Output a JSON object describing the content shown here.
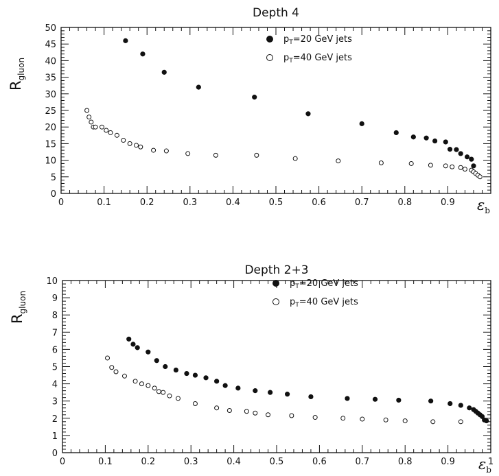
{
  "chart_data": [
    {
      "type": "scatter",
      "title": "Depth 4",
      "ylabel": "R",
      "ylabel_sub": "gluon",
      "xlabel": "ε",
      "xlabel_sub": "b",
      "xlim": [
        0,
        1
      ],
      "ylim": [
        0,
        50
      ],
      "x_ticks": [
        0,
        0.1,
        0.2,
        0.3,
        0.4,
        0.5,
        0.6,
        0.7,
        0.8,
        0.9
      ],
      "x_tick_labels": [
        "0",
        "0.1",
        "0.2",
        "0.3",
        "0.4",
        "0.5",
        "0.6",
        "0.7",
        "0.8",
        "0.9"
      ],
      "y_ticks": [
        0,
        5,
        10,
        15,
        20,
        25,
        30,
        35,
        40,
        45,
        50
      ],
      "y_tick_labels": [
        "0",
        "5",
        "10",
        "15",
        "20",
        "25",
        "30",
        "35",
        "40",
        "45",
        "50"
      ],
      "x_minor_step": 0.02,
      "y_minor_step": 1,
      "legend_position": "top-right",
      "grid": false,
      "series": [
        {
          "name": "p_T=20 GeV jets",
          "legend_main": "p",
          "legend_sub": "T",
          "legend_rest": "=20 GeV jets",
          "marker": "filled",
          "x": [
            0.15,
            0.19,
            0.24,
            0.32,
            0.45,
            0.575,
            0.7,
            0.78,
            0.82,
            0.85,
            0.87,
            0.895,
            0.905,
            0.92,
            0.93,
            0.945,
            0.955,
            0.96
          ],
          "y": [
            46,
            42,
            36.5,
            32,
            29,
            24,
            21,
            18.3,
            17,
            16.7,
            15.8,
            15.5,
            13.3,
            13.2,
            12,
            11,
            10.3,
            8.3
          ]
        },
        {
          "name": "p_T=40 GeV jets",
          "legend_main": "p",
          "legend_sub": "T",
          "legend_rest": "=40 GeV jets",
          "marker": "open",
          "x": [
            0.06,
            0.065,
            0.07,
            0.075,
            0.08,
            0.095,
            0.105,
            0.115,
            0.13,
            0.145,
            0.16,
            0.175,
            0.185,
            0.215,
            0.245,
            0.295,
            0.36,
            0.455,
            0.545,
            0.645,
            0.745,
            0.815,
            0.86,
            0.895,
            0.91,
            0.93,
            0.94,
            0.955,
            0.96,
            0.965,
            0.97,
            0.975
          ],
          "y": [
            25,
            23,
            21.5,
            20,
            20,
            20,
            19,
            18.3,
            17.5,
            16,
            15,
            14.5,
            14,
            13,
            12.8,
            12,
            11.5,
            11.5,
            10.5,
            9.8,
            9.2,
            9,
            8.5,
            8.3,
            8,
            7.8,
            7.3,
            7,
            6.5,
            6,
            5.5,
            5
          ]
        }
      ]
    },
    {
      "type": "scatter",
      "title": "Depth 2+3",
      "ylabel": "R",
      "ylabel_sub": "gluon",
      "xlabel": "ε",
      "xlabel_sub": "b",
      "xlim": [
        0,
        1
      ],
      "ylim": [
        0,
        10
      ],
      "x_ticks": [
        0,
        0.1,
        0.2,
        0.3,
        0.4,
        0.5,
        0.6,
        0.7,
        0.8,
        0.9,
        1
      ],
      "x_tick_labels": [
        "0",
        "0.1",
        "0.2",
        "0.3",
        "0.4",
        "0.5",
        "0.6",
        "0.7",
        "0.8",
        "0.9",
        "1"
      ],
      "y_ticks": [
        0,
        1,
        2,
        3,
        4,
        5,
        6,
        7,
        8,
        9,
        10
      ],
      "y_tick_labels": [
        "0",
        "1",
        "2",
        "3",
        "4",
        "5",
        "6",
        "7",
        "8",
        "9",
        "10"
      ],
      "x_minor_step": 0.02,
      "y_minor_step": 0.2,
      "legend_position": "top-center",
      "grid": false,
      "series": [
        {
          "name": "p_T=20 GeV jets",
          "legend_main": "p",
          "legend_sub": "T",
          "legend_rest": "=20 GeV jets",
          "marker": "filled",
          "x": [
            0.155,
            0.165,
            0.175,
            0.2,
            0.22,
            0.24,
            0.265,
            0.29,
            0.31,
            0.335,
            0.36,
            0.38,
            0.41,
            0.45,
            0.485,
            0.525,
            0.58,
            0.665,
            0.73,
            0.785,
            0.86,
            0.905,
            0.93,
            0.95,
            0.96,
            0.965,
            0.97,
            0.975,
            0.98,
            0.985,
            0.99
          ],
          "y": [
            6.6,
            6.3,
            6.1,
            5.85,
            5.35,
            5.0,
            4.8,
            4.6,
            4.5,
            4.35,
            4.15,
            3.9,
            3.75,
            3.6,
            3.5,
            3.4,
            3.25,
            3.15,
            3.1,
            3.05,
            3.0,
            2.85,
            2.75,
            2.6,
            2.5,
            2.4,
            2.3,
            2.2,
            2.1,
            1.9,
            1.85
          ]
        },
        {
          "name": "p_T=40 GeV jets",
          "legend_main": "p",
          "legend_sub": "T",
          "legend_rest": "=40 GeV jets",
          "marker": "open",
          "x": [
            0.105,
            0.115,
            0.125,
            0.145,
            0.17,
            0.185,
            0.2,
            0.215,
            0.225,
            0.235,
            0.25,
            0.27,
            0.31,
            0.36,
            0.39,
            0.43,
            0.45,
            0.48,
            0.535,
            0.59,
            0.655,
            0.7,
            0.755,
            0.8,
            0.865,
            0.93
          ],
          "y": [
            5.5,
            4.95,
            4.7,
            4.45,
            4.15,
            4.0,
            3.9,
            3.75,
            3.55,
            3.5,
            3.3,
            3.15,
            2.85,
            2.6,
            2.45,
            2.4,
            2.3,
            2.2,
            2.15,
            2.05,
            2.0,
            1.95,
            1.9,
            1.85,
            1.8,
            1.8
          ]
        }
      ]
    }
  ]
}
